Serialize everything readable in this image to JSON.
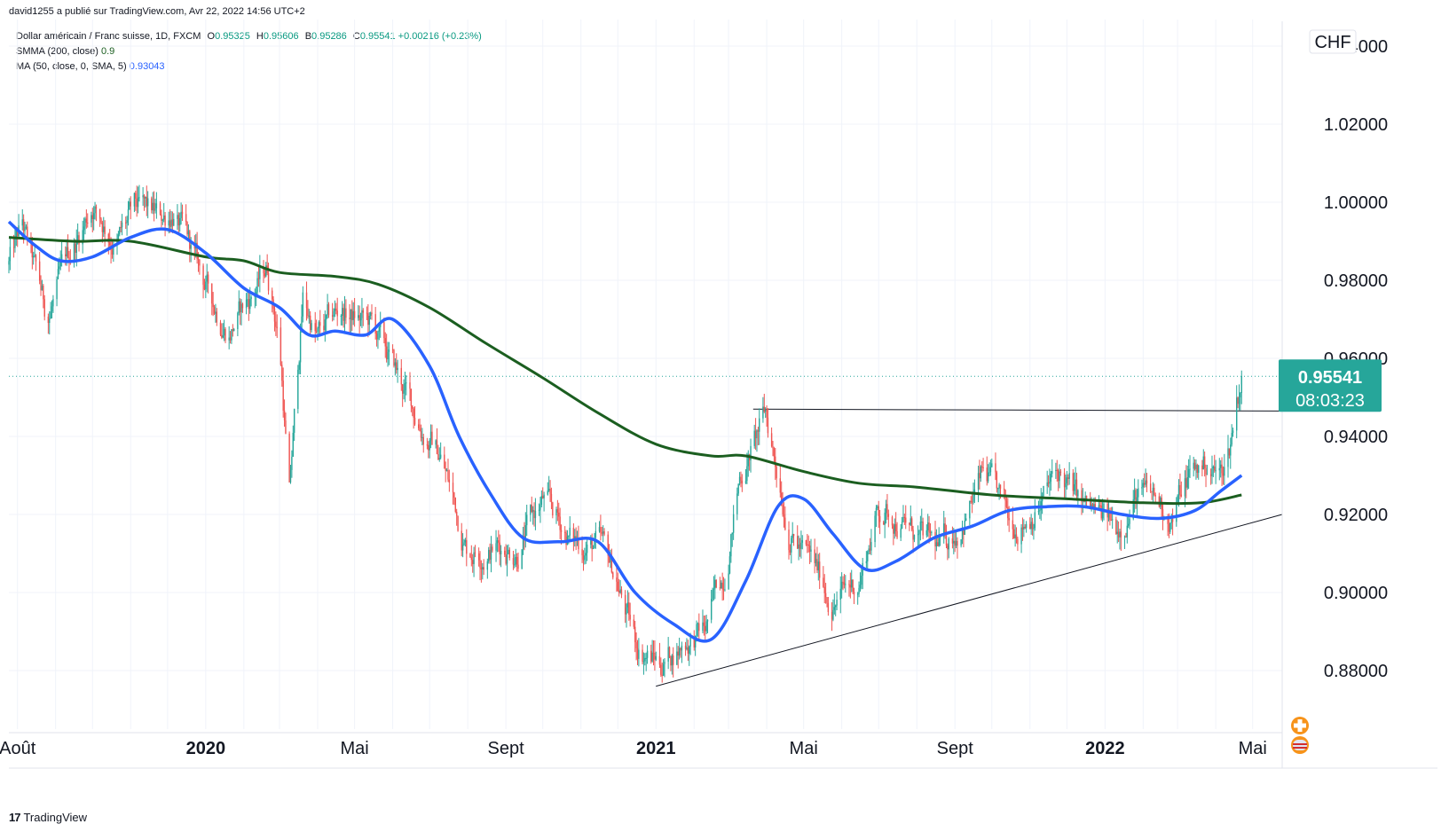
{
  "byline": "david1255 a publié sur TradingView.com, Avr 22, 2022 14:56 UTC+2",
  "legend": {
    "symbol": "Dollar américain / Franc suisse, 1D, FXCM",
    "o_label": "O",
    "o_value": "0.95325",
    "h_label": "H",
    "h_value": "0.95606",
    "b_label": "B",
    "b_value": "0.95286",
    "c_label": "C",
    "c_value": "0.95541",
    "change": "+0.00216 (+0.23%)",
    "smma_label": "SMMA (200, close)",
    "smma_value": "0.9",
    "ma_label": "MA (50, close, 0, SMA, 5)",
    "ma_value": "0.93043"
  },
  "currency": "CHF",
  "price_box": {
    "price": "0.95541",
    "countdown": "08:03:23"
  },
  "footer": {
    "logo": "17",
    "brand": "TradingView"
  },
  "colors": {
    "up": "#26a69a",
    "down": "#ef5350",
    "ma50": "#2962ff",
    "smma200": "#1b5e20",
    "price_tag": "#26a69a",
    "grid": "#f0f3fa"
  },
  "chart_data": {
    "type": "candlestick",
    "ylim": [
      0.865,
      1.045
    ],
    "y_ticks": [
      {
        "value": 1.04,
        "label": "1.04000"
      },
      {
        "value": 1.02,
        "label": "1.02000"
      },
      {
        "value": 1.0,
        "label": "1.00000"
      },
      {
        "value": 0.98,
        "label": "0.98000"
      },
      {
        "value": 0.96,
        "label": "0.96000"
      },
      {
        "value": 0.94,
        "label": "0.94000"
      },
      {
        "value": 0.92,
        "label": "0.92000"
      },
      {
        "value": 0.9,
        "label": "0.90000"
      },
      {
        "value": 0.88,
        "label": "0.88000"
      }
    ],
    "x_range": [
      "2019-07-25",
      "2022-05-25"
    ],
    "x_ticks": [
      {
        "date": "2019-08-01",
        "label": "Août",
        "bold": false
      },
      {
        "date": "2020-01-01",
        "label": "2020",
        "bold": true
      },
      {
        "date": "2020-05-01",
        "label": "Mai",
        "bold": false
      },
      {
        "date": "2020-09-01",
        "label": "Sept",
        "bold": false
      },
      {
        "date": "2021-01-01",
        "label": "2021",
        "bold": true
      },
      {
        "date": "2021-05-01",
        "label": "Mai",
        "bold": false
      },
      {
        "date": "2021-09-01",
        "label": "Sept",
        "bold": false
      },
      {
        "date": "2022-01-01",
        "label": "2022",
        "bold": true
      },
      {
        "date": "2022-05-01",
        "label": "Mai",
        "bold": false
      }
    ],
    "last_price": 0.95541,
    "price_path": [
      [
        "2019-07-25",
        0.984
      ],
      [
        "2019-08-05",
        0.993
      ],
      [
        "2019-08-25",
        0.97
      ],
      [
        "2019-09-15",
        0.988
      ],
      [
        "2019-10-01",
        1.0
      ],
      [
        "2019-10-20",
        0.99
      ],
      [
        "2019-11-05",
        0.997
      ],
      [
        "2019-11-25",
        0.995
      ],
      [
        "2019-12-05",
        0.998
      ],
      [
        "2020-01-05",
        0.975
      ],
      [
        "2020-01-20",
        0.968
      ],
      [
        "2020-02-05",
        0.975
      ],
      [
        "2020-02-20",
        0.983
      ],
      [
        "2020-03-01",
        0.965
      ],
      [
        "2020-03-09",
        0.925
      ],
      [
        "2020-03-20",
        0.975
      ],
      [
        "2020-04-01",
        0.965
      ],
      [
        "2020-04-20",
        0.972
      ],
      [
        "2020-05-15",
        0.968
      ],
      [
        "2020-06-05",
        0.955
      ],
      [
        "2020-06-20",
        0.945
      ],
      [
        "2020-07-10",
        0.935
      ],
      [
        "2020-07-31",
        0.912
      ],
      [
        "2020-08-20",
        0.912
      ],
      [
        "2020-09-10",
        0.912
      ],
      [
        "2020-10-01",
        0.923
      ],
      [
        "2020-10-25",
        0.913
      ],
      [
        "2020-11-15",
        0.912
      ],
      [
        "2020-11-30",
        0.903
      ],
      [
        "2020-12-15",
        0.887
      ],
      [
        "2021-01-05",
        0.882
      ],
      [
        "2021-01-25",
        0.888
      ],
      [
        "2021-02-10",
        0.89
      ],
      [
        "2021-02-25",
        0.905
      ],
      [
        "2021-03-10",
        0.93
      ],
      [
        "2021-03-31",
        0.945
      ],
      [
        "2021-04-20",
        0.917
      ],
      [
        "2021-05-05",
        0.908
      ],
      [
        "2021-05-25",
        0.898
      ],
      [
        "2021-06-15",
        0.903
      ],
      [
        "2021-06-30",
        0.921
      ],
      [
        "2021-07-15",
        0.92
      ],
      [
        "2021-08-05",
        0.913
      ],
      [
        "2021-08-20",
        0.91
      ],
      [
        "2021-09-05",
        0.918
      ],
      [
        "2021-09-25",
        0.93
      ],
      [
        "2021-10-15",
        0.917
      ],
      [
        "2021-11-01",
        0.921
      ],
      [
        "2021-11-25",
        0.93
      ],
      [
        "2021-12-15",
        0.921
      ],
      [
        "2022-01-10",
        0.916
      ],
      [
        "2022-01-25",
        0.925
      ],
      [
        "2022-02-10",
        0.923
      ],
      [
        "2022-02-25",
        0.92
      ],
      [
        "2022-03-10",
        0.93
      ],
      [
        "2022-03-25",
        0.933
      ],
      [
        "2022-04-05",
        0.93
      ],
      [
        "2022-04-12",
        0.937
      ],
      [
        "2022-04-18",
        0.95
      ],
      [
        "2022-04-22",
        0.9554
      ]
    ],
    "series": [
      {
        "id": "smma200",
        "points": [
          [
            "2019-07-25",
            0.991
          ],
          [
            "2019-09-15",
            0.99
          ],
          [
            "2019-11-01",
            0.99
          ],
          [
            "2020-01-01",
            0.986
          ],
          [
            "2020-02-01",
            0.985
          ],
          [
            "2020-03-01",
            0.982
          ],
          [
            "2020-04-15",
            0.981
          ],
          [
            "2020-05-20",
            0.979
          ],
          [
            "2020-07-01",
            0.973
          ],
          [
            "2020-08-15",
            0.964
          ],
          [
            "2020-10-01",
            0.955
          ],
          [
            "2020-11-15",
            0.946
          ],
          [
            "2021-01-01",
            0.938
          ],
          [
            "2021-02-15",
            0.935
          ],
          [
            "2021-03-15",
            0.935
          ],
          [
            "2021-05-01",
            0.931
          ],
          [
            "2021-06-15",
            0.928
          ],
          [
            "2021-08-01",
            0.927
          ],
          [
            "2021-10-01",
            0.925
          ],
          [
            "2021-12-01",
            0.924
          ],
          [
            "2022-02-01",
            0.923
          ],
          [
            "2022-03-20",
            0.923
          ],
          [
            "2022-04-22",
            0.925
          ]
        ]
      },
      {
        "id": "ma50",
        "points": [
          [
            "2019-07-25",
            0.995
          ],
          [
            "2019-08-15",
            0.989
          ],
          [
            "2019-09-05",
            0.985
          ],
          [
            "2019-10-01",
            0.986
          ],
          [
            "2019-11-01",
            0.991
          ],
          [
            "2019-12-01",
            0.993
          ],
          [
            "2020-01-01",
            0.987
          ],
          [
            "2020-02-01",
            0.978
          ],
          [
            "2020-03-01",
            0.973
          ],
          [
            "2020-03-25",
            0.966
          ],
          [
            "2020-04-15",
            0.967
          ],
          [
            "2020-05-10",
            0.966
          ],
          [
            "2020-06-01",
            0.97
          ],
          [
            "2020-07-01",
            0.958
          ],
          [
            "2020-07-25",
            0.94
          ],
          [
            "2020-08-20",
            0.925
          ],
          [
            "2020-09-15",
            0.914
          ],
          [
            "2020-10-15",
            0.913
          ],
          [
            "2020-11-15",
            0.913
          ],
          [
            "2020-12-15",
            0.9
          ],
          [
            "2021-01-15",
            0.892
          ],
          [
            "2021-02-15",
            0.888
          ],
          [
            "2021-03-15",
            0.903
          ],
          [
            "2021-04-10",
            0.922
          ],
          [
            "2021-05-01",
            0.924
          ],
          [
            "2021-05-25",
            0.915
          ],
          [
            "2021-06-20",
            0.906
          ],
          [
            "2021-07-15",
            0.908
          ],
          [
            "2021-08-15",
            0.914
          ],
          [
            "2021-09-15",
            0.917
          ],
          [
            "2021-10-15",
            0.921
          ],
          [
            "2021-11-15",
            0.922
          ],
          [
            "2021-12-15",
            0.922
          ],
          [
            "2022-01-15",
            0.92
          ],
          [
            "2022-02-15",
            0.919
          ],
          [
            "2022-03-15",
            0.921
          ],
          [
            "2022-04-05",
            0.926
          ],
          [
            "2022-04-22",
            0.93
          ]
        ]
      }
    ],
    "annotations": [
      {
        "type": "trendline",
        "from": [
          "2021-01-01",
          0.876
        ],
        "to": [
          "2022-05-25",
          0.92
        ]
      },
      {
        "type": "trendline",
        "from": [
          "2021-03-21",
          0.947
        ],
        "to": [
          "2022-05-25",
          0.9465
        ]
      },
      {
        "type": "last_price_line",
        "value": 0.95541
      }
    ]
  }
}
